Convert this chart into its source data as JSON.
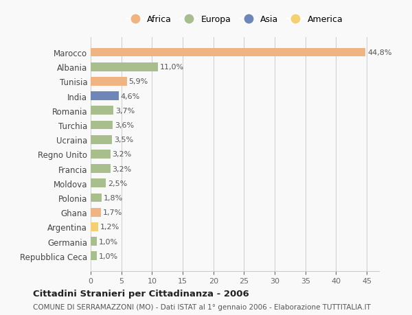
{
  "countries": [
    "Marocco",
    "Albania",
    "Tunisia",
    "India",
    "Romania",
    "Turchia",
    "Ucraina",
    "Regno Unito",
    "Francia",
    "Moldova",
    "Polonia",
    "Ghana",
    "Argentina",
    "Germania",
    "Repubblica Ceca"
  ],
  "values": [
    44.8,
    11.0,
    5.9,
    4.6,
    3.7,
    3.6,
    3.5,
    3.2,
    3.2,
    2.5,
    1.8,
    1.7,
    1.2,
    1.0,
    1.0
  ],
  "labels": [
    "44,8%",
    "11,0%",
    "5,9%",
    "4,6%",
    "3,7%",
    "3,6%",
    "3,5%",
    "3,2%",
    "3,2%",
    "2,5%",
    "1,8%",
    "1,7%",
    "1,2%",
    "1,0%",
    "1,0%"
  ],
  "colors": [
    "#F0B482",
    "#A8BE8C",
    "#F0B482",
    "#6E86B8",
    "#A8BE8C",
    "#A8BE8C",
    "#A8BE8C",
    "#A8BE8C",
    "#A8BE8C",
    "#A8BE8C",
    "#A8BE8C",
    "#F0B482",
    "#F5D070",
    "#A8BE8C",
    "#A8BE8C"
  ],
  "legend": [
    {
      "label": "Africa",
      "color": "#F0B482"
    },
    {
      "label": "Europa",
      "color": "#A8BE8C"
    },
    {
      "label": "Asia",
      "color": "#6E86B8"
    },
    {
      "label": "America",
      "color": "#F5D070"
    }
  ],
  "xlim": [
    0,
    47
  ],
  "xticks": [
    0,
    5,
    10,
    15,
    20,
    25,
    30,
    35,
    40,
    45
  ],
  "title": "Cittadini Stranieri per Cittadinanza - 2006",
  "subtitle": "COMUNE DI SERRAMAZZONI (MO) - Dati ISTAT al 1° gennaio 2006 - Elaborazione TUTTITALIA.IT",
  "bg_color": "#f9f9f9",
  "grid_color": "#cccccc"
}
